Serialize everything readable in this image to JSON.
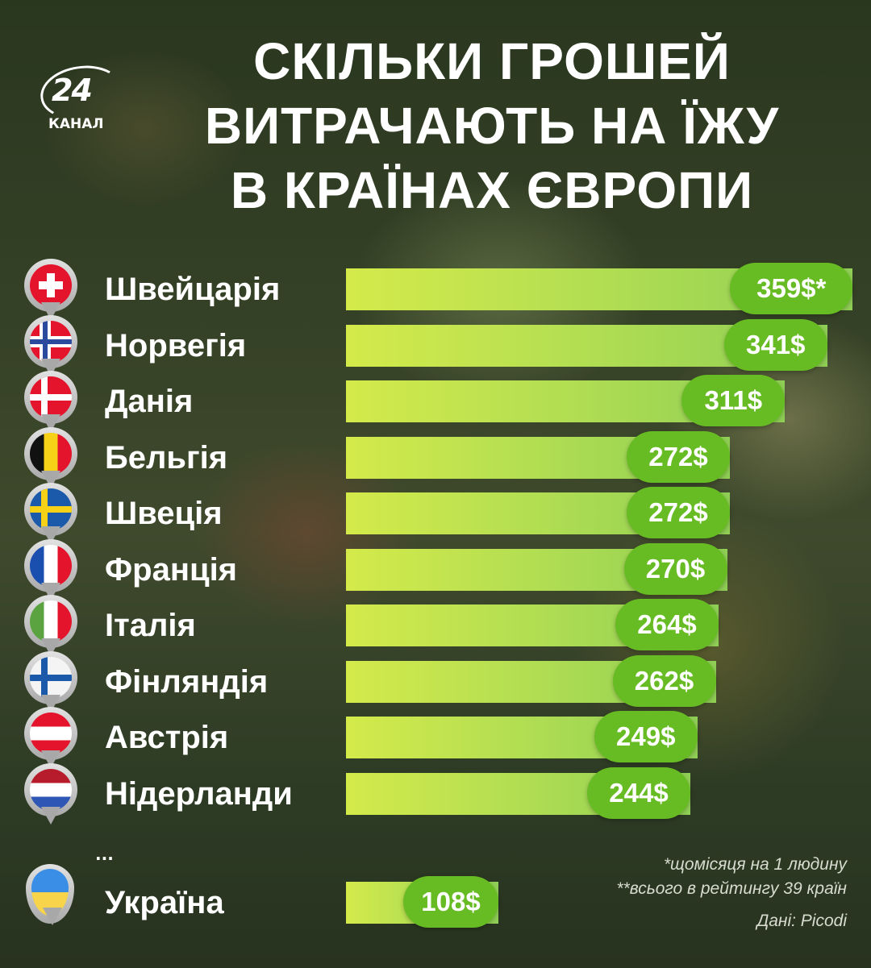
{
  "logo": {
    "number": "24",
    "text": "КАНАЛ"
  },
  "title": {
    "line1": "СКІЛЬКИ ГРОШЕЙ",
    "line2": "ВИТРАЧАЮТЬ НА ЇЖУ",
    "line3": "В КРАЇНАХ ЄВРОПИ"
  },
  "rows": [
    {
      "country": "Швейцарія",
      "value_label": "359$*",
      "flag": "switzerland"
    },
    {
      "country": "Норвегія",
      "value_label": "341$",
      "flag": "norway"
    },
    {
      "country": "Данія",
      "value_label": "311$",
      "flag": "denmark"
    },
    {
      "country": "Бельгія",
      "value_label": "272$",
      "flag": "belgium"
    },
    {
      "country": "Швеція",
      "value_label": "272$",
      "flag": "sweden"
    },
    {
      "country": "Франція",
      "value_label": "270$",
      "flag": "france"
    },
    {
      "country": "Італія",
      "value_label": "264$",
      "flag": "italy"
    },
    {
      "country": "Фінляндія",
      "value_label": "262$",
      "flag": "finland"
    },
    {
      "country": "Австрія",
      "value_label": "249$",
      "flag": "austria"
    },
    {
      "country": "Нідерланди",
      "value_label": "244$",
      "flag": "netherlands"
    }
  ],
  "ellipsis": "...",
  "ukraine": {
    "country": "Україна",
    "value_label": "108$",
    "flag": "ukraine"
  },
  "notes": {
    "note1": "*щомісяця на 1 людину",
    "note2": "**всього в рейтингу 39 країн",
    "source": "Дані: Picodi"
  },
  "colors": {
    "bar_start": "#d4ea4a",
    "bar_end": "#8fcf55",
    "pill": "#68bc23",
    "text": "#ffffff"
  },
  "chart_data": {
    "type": "bar",
    "orientation": "horizontal",
    "title": "Скільки грошей витрачають на їжу в країнах Європи",
    "categories": [
      "Швейцарія",
      "Норвегія",
      "Данія",
      "Бельгія",
      "Швеція",
      "Франція",
      "Італія",
      "Фінляндія",
      "Австрія",
      "Нідерланди",
      "Україна"
    ],
    "values": [
      359,
      341,
      311,
      272,
      272,
      270,
      264,
      262,
      249,
      244,
      108
    ],
    "unit": "$ per month per person",
    "xlabel": "",
    "ylabel": "",
    "annotations": [
      "*щомісяця на 1 людину",
      "**всього в рейтингу 39 країн",
      "Дані: Picodi"
    ],
    "grid": false,
    "legend": null
  }
}
